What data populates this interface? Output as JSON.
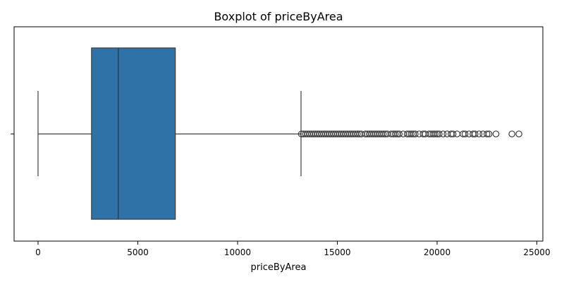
{
  "chart_data": {
    "type": "boxplot",
    "title": "Boxplot of priceByArea",
    "xlabel": "priceByArea",
    "ylabel": "",
    "xlim": [
      -1200,
      25300
    ],
    "xticks": [
      0,
      5000,
      10000,
      15000,
      20000,
      25000
    ],
    "xtick_labels": [
      "0",
      "5000",
      "10000",
      "15000",
      "20000",
      "25000"
    ],
    "grid": false,
    "box": {
      "whisker_low": 0,
      "q1": 2680,
      "median": 4020,
      "q3": 6880,
      "whisker_high": 13180,
      "color": "#2e72a8",
      "edge_color": "#3d3d3d"
    },
    "outliers": [
      13200,
      13300,
      13400,
      13500,
      13600,
      13700,
      13800,
      13900,
      14000,
      14100,
      14200,
      14300,
      14400,
      14500,
      14600,
      14700,
      14800,
      14900,
      15000,
      15100,
      15200,
      15300,
      15400,
      15500,
      15600,
      15700,
      15800,
      15900,
      16000,
      16100,
      16200,
      16400,
      16500,
      16600,
      16700,
      16800,
      16900,
      17000,
      17100,
      17200,
      17300,
      17400,
      17500,
      17700,
      17800,
      17900,
      18000,
      18100,
      18300,
      18500,
      18600,
      18700,
      18800,
      18900,
      19100,
      19300,
      19400,
      19600,
      19700,
      19800,
      19900,
      20000,
      20100,
      20300,
      20500,
      20700,
      20800,
      21000,
      21300,
      21400,
      21600,
      21800,
      21900,
      22100,
      22300,
      22500,
      22600,
      22950,
      23750,
      24100
    ]
  }
}
